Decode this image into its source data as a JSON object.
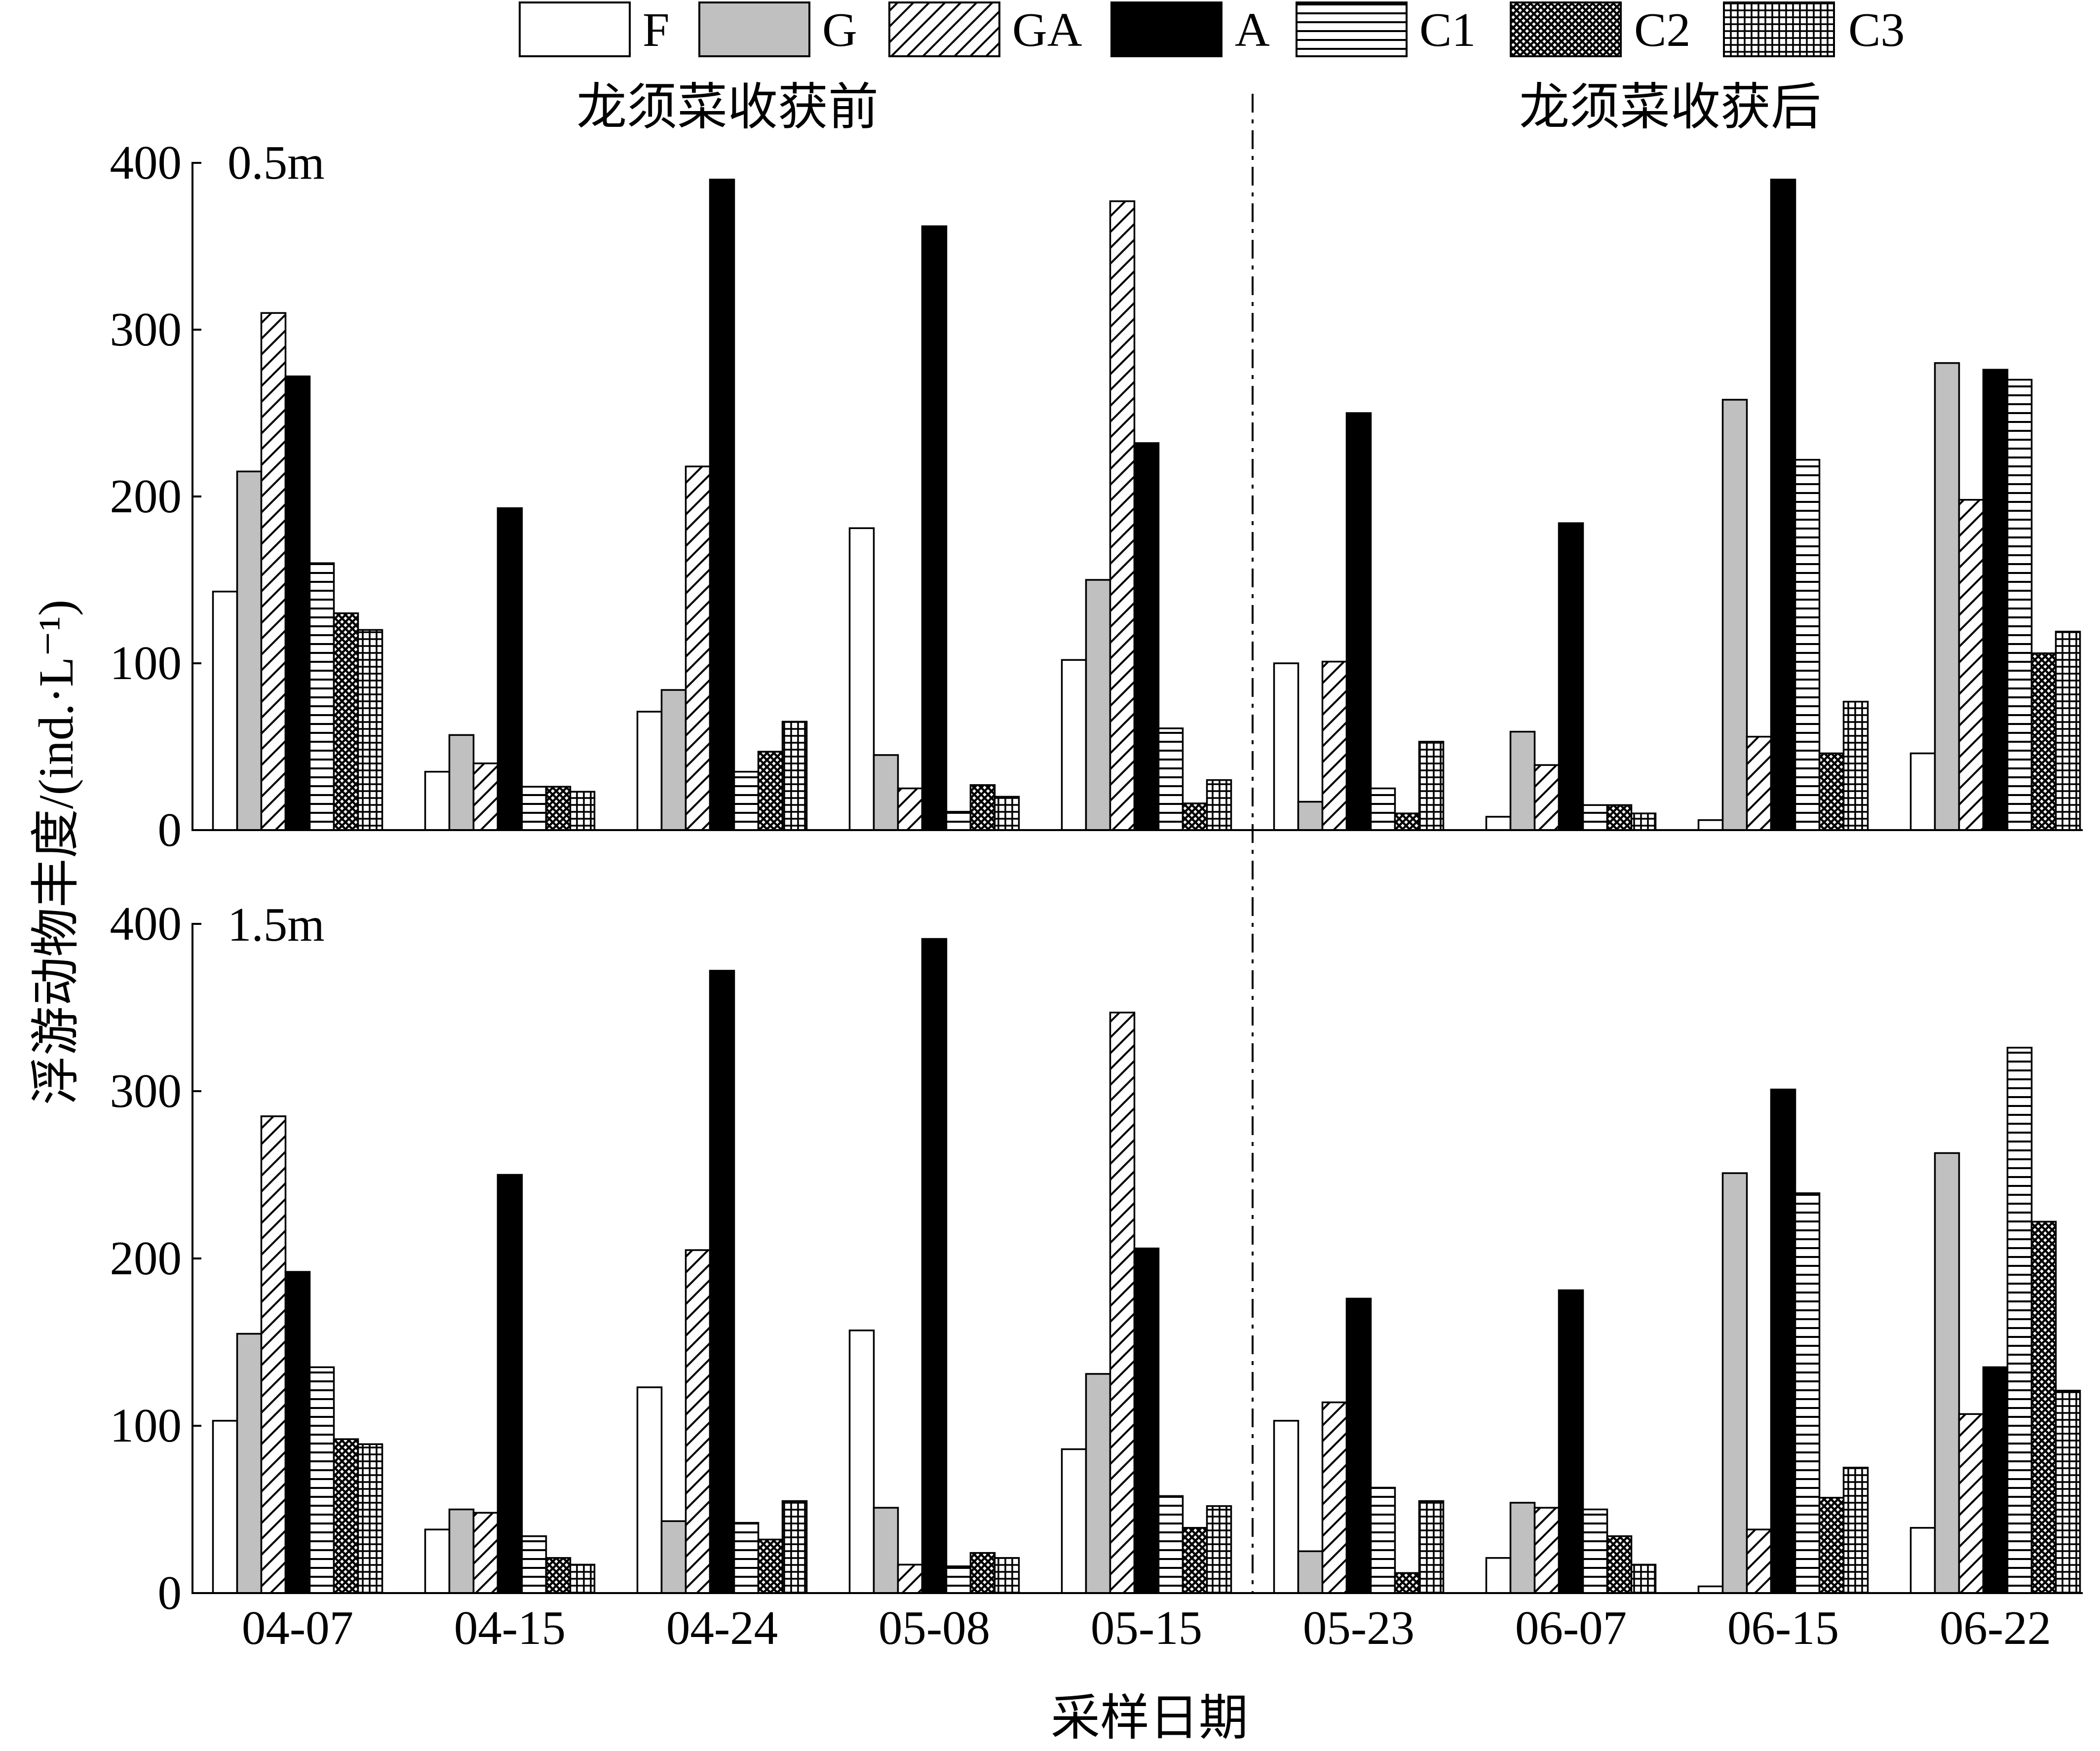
{
  "chart_data": {
    "type": "bar",
    "categories": [
      "04-07",
      "04-15",
      "04-24",
      "05-08",
      "05-15",
      "05-23",
      "06-07",
      "06-15",
      "06-22"
    ],
    "series": [
      {
        "name": "F",
        "color": "#ffffff",
        "pattern": "none"
      },
      {
        "name": "G",
        "color": "#c0c0c0",
        "pattern": "none"
      },
      {
        "name": "GA",
        "color": "#ffffff",
        "pattern": "diagonal"
      },
      {
        "name": "A",
        "color": "#000000",
        "pattern": "none"
      },
      {
        "name": "C1",
        "color": "#ffffff",
        "pattern": "horizontal"
      },
      {
        "name": "C2",
        "color": "#ffffff",
        "pattern": "crosshatch"
      },
      {
        "name": "C3",
        "color": "#ffffff",
        "pattern": "grid"
      }
    ],
    "panels": [
      {
        "label": "0.5m",
        "values": {
          "F": [
            143,
            35,
            71,
            181,
            102,
            100,
            8,
            6,
            46
          ],
          "G": [
            215,
            57,
            84,
            45,
            150,
            17,
            59,
            258,
            280
          ],
          "GA": [
            310,
            40,
            218,
            25,
            377,
            101,
            39,
            56,
            198
          ],
          "A": [
            272,
            193,
            390,
            362,
            232,
            250,
            184,
            390,
            276
          ],
          "C1": [
            160,
            26,
            35,
            11,
            61,
            25,
            15,
            222,
            270
          ],
          "C2": [
            130,
            26,
            47,
            27,
            16,
            10,
            15,
            46,
            106
          ],
          "C3": [
            120,
            23,
            65,
            20,
            30,
            53,
            10,
            77,
            119
          ]
        }
      },
      {
        "label": "1.5m",
        "values": {
          "F": [
            103,
            38,
            123,
            157,
            86,
            103,
            21,
            4,
            39
          ],
          "G": [
            155,
            50,
            43,
            51,
            131,
            25,
            54,
            251,
            263
          ],
          "GA": [
            285,
            48,
            205,
            17,
            347,
            114,
            51,
            38,
            107
          ],
          "A": [
            192,
            250,
            372,
            391,
            206,
            176,
            181,
            301,
            135
          ],
          "C1": [
            135,
            34,
            42,
            16,
            58,
            63,
            50,
            239,
            326
          ],
          "C2": [
            92,
            21,
            32,
            24,
            39,
            12,
            34,
            57,
            222
          ],
          "C3": [
            89,
            17,
            55,
            21,
            52,
            55,
            17,
            75,
            121
          ]
        }
      }
    ],
    "ylim": [
      0,
      400
    ],
    "yticks": [
      0,
      100,
      200,
      300,
      400
    ],
    "ylabel": "浮游动物丰度/(ind.·L⁻¹)",
    "xlabel": "采样日期",
    "annotations": {
      "before_harvest": "龙须菜收获前",
      "after_harvest": "龙须菜收获后"
    },
    "divider_after_index": 4,
    "legend": "top",
    "grid": false
  }
}
